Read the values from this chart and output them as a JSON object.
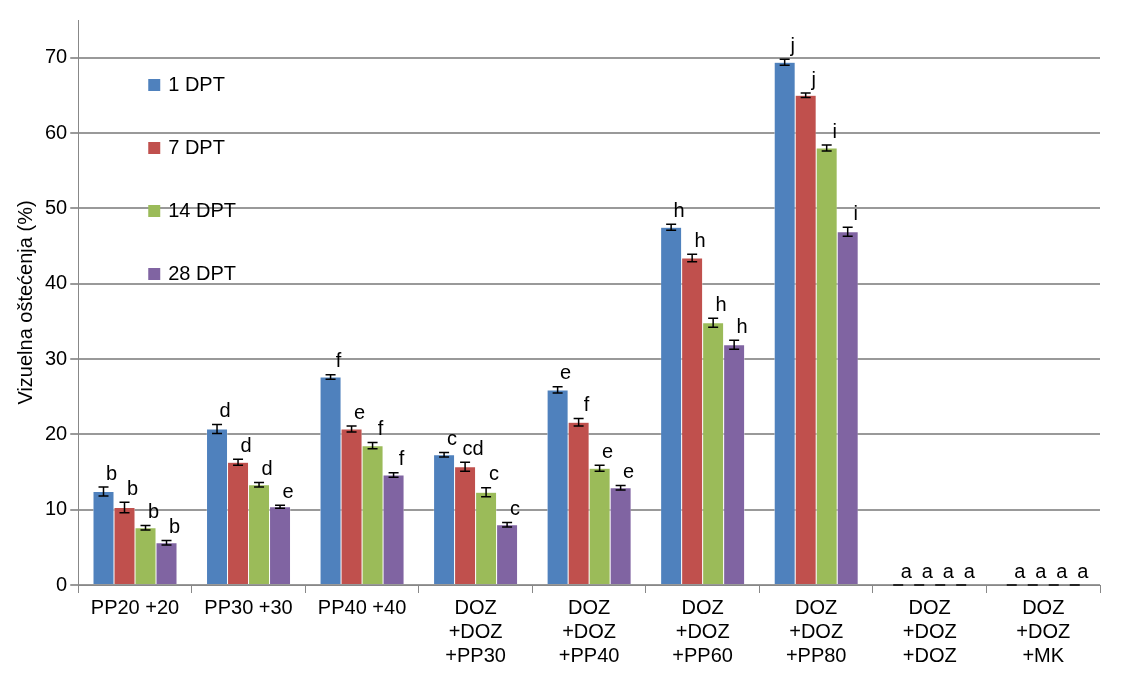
{
  "chart_data": {
    "type": "bar",
    "ylabel": "Vizuelna oštećenja (%)",
    "categories": [
      "PP20 +20",
      "PP30 +30",
      "PP40 +40",
      "DOZ\n+DOZ\n+PP30",
      "DOZ\n+DOZ\n+PP40",
      "DOZ\n+DOZ\n+PP60",
      "DOZ\n+DOZ\n+PP80",
      "DOZ\n+DOZ\n+DOZ",
      "DOZ\n+DOZ\n+MK"
    ],
    "series": [
      {
        "name": "1 DPT",
        "color": "#4f81bd",
        "values": [
          12.4,
          20.7,
          27.6,
          17.3,
          25.9,
          47.5,
          69.4,
          0,
          0
        ],
        "errors": [
          0.6,
          0.6,
          0.3,
          0.3,
          0.4,
          0.4,
          0.4,
          0,
          0
        ],
        "value_labels": [
          "b",
          "d",
          "f",
          "c",
          "e",
          "h",
          "j",
          "a",
          "a"
        ]
      },
      {
        "name": "7 DPT",
        "color": "#c0504d",
        "values": [
          10.3,
          16.3,
          20.7,
          15.7,
          21.6,
          43.4,
          65.0,
          0,
          0
        ],
        "errors": [
          0.7,
          0.4,
          0.4,
          0.6,
          0.5,
          0.5,
          0.3,
          0,
          0
        ],
        "value_labels": [
          "b",
          "d",
          "e",
          "cd",
          "f",
          "h",
          "j",
          "a",
          "a"
        ]
      },
      {
        "name": "14 DPT",
        "color": "#9bbb59",
        "values": [
          7.6,
          13.3,
          18.5,
          12.3,
          15.5,
          34.8,
          58.0,
          0,
          0
        ],
        "errors": [
          0.3,
          0.3,
          0.4,
          0.6,
          0.4,
          0.6,
          0.4,
          0,
          0
        ],
        "value_labels": [
          "b",
          "d",
          "f",
          "c",
          "e",
          "h",
          "i",
          "a",
          "a"
        ]
      },
      {
        "name": "28 DPT",
        "color": "#8064a2",
        "values": [
          5.6,
          10.4,
          14.6,
          8.0,
          12.9,
          31.9,
          46.9,
          0,
          0
        ],
        "errors": [
          0.3,
          0.2,
          0.3,
          0.3,
          0.3,
          0.6,
          0.6,
          0,
          0
        ],
        "value_labels": [
          "b",
          "e",
          "f",
          "c",
          "e",
          "h",
          "i",
          "a",
          "a"
        ]
      }
    ],
    "ylim": [
      0,
      75
    ],
    "yticks": [
      0,
      10,
      20,
      30,
      40,
      50,
      60,
      70
    ],
    "grid": "y",
    "legend": "top left"
  }
}
